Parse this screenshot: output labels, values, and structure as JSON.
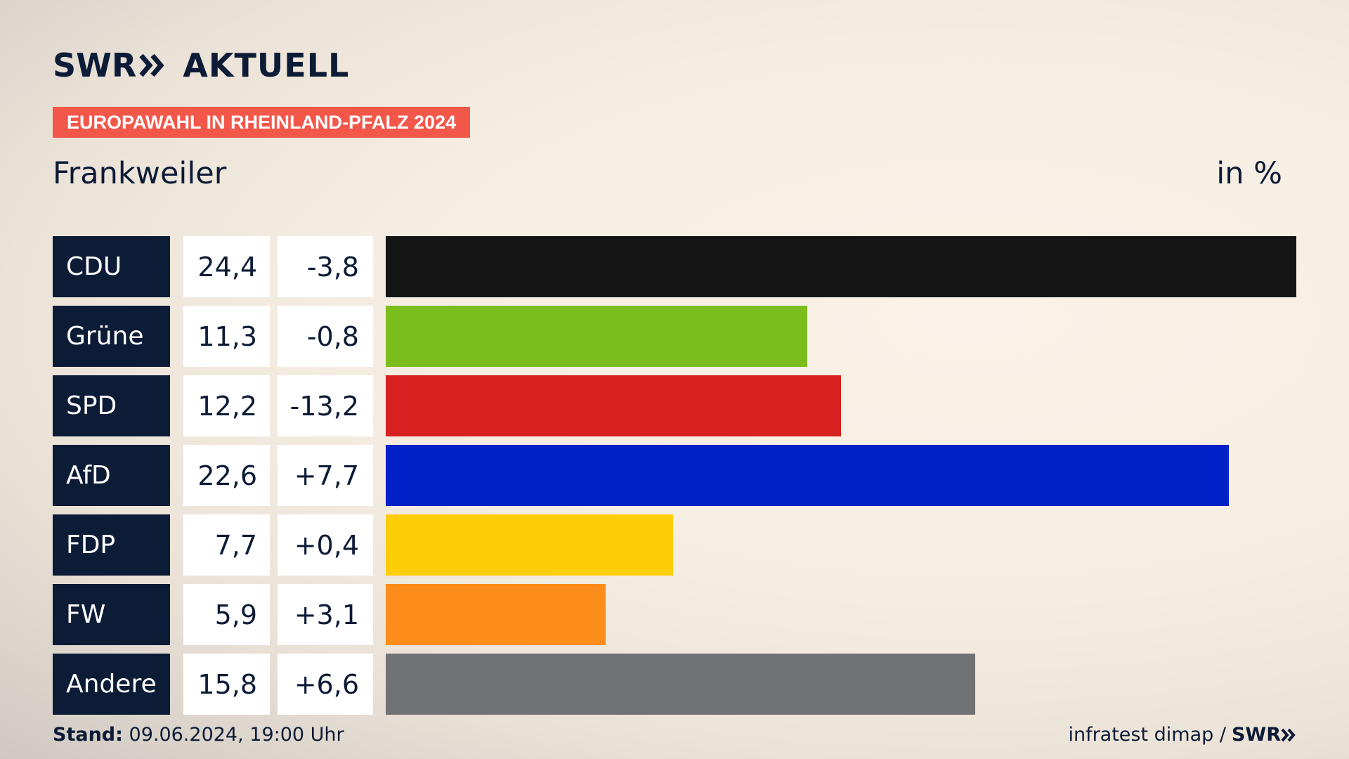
{
  "header": {
    "brand": "SWR",
    "brand_suffix": "AKTUELL",
    "tag": "EUROPAWAHL IN RHEINLAND-PFALZ 2024",
    "place": "Frankweiler",
    "unit": "in %"
  },
  "footer": {
    "stand_label": "Stand:",
    "stand_value": "09.06.2024, 19:00 Uhr",
    "source": "infratest dimap /",
    "source_brand": "SWR"
  },
  "colors": {
    "navy": "#0c1b36",
    "tag": "#f3574a"
  },
  "chart_data": {
    "type": "bar",
    "orientation": "horizontal",
    "title": "Frankweiler",
    "unit": "in %",
    "xlim": [
      0,
      24.4
    ],
    "categories": [
      "CDU",
      "Grüne",
      "SPD",
      "AfD",
      "FDP",
      "FW",
      "Andere"
    ],
    "values": [
      24.4,
      11.3,
      12.2,
      22.6,
      7.7,
      5.9,
      15.8
    ],
    "values_label": [
      "24,4",
      "11,3",
      "12,2",
      "22,6",
      "7,7",
      "5,9",
      "15,8"
    ],
    "diffs_label": [
      "-3,8",
      "-0,8",
      "-13,2",
      "+7,7",
      "+0,4",
      "+3,1",
      "+6,6"
    ],
    "bar_colors": [
      "#151515",
      "#7bbd1c",
      "#d72020",
      "#0020c8",
      "#fdcd0a",
      "#fc8d1a",
      "#717274"
    ]
  }
}
